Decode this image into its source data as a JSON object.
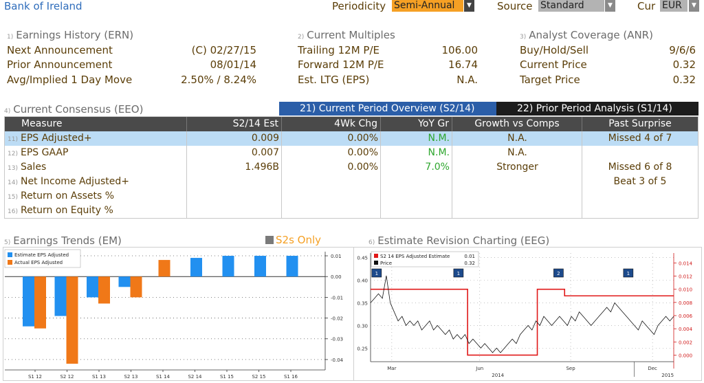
{
  "header": {
    "title": "Bank of Ireland",
    "periodicity_label": "Periodicity",
    "periodicity_value": "Semi-Annual",
    "source_label": "Source",
    "source_value": "Standard",
    "cur_label": "Cur",
    "cur_value": "EUR"
  },
  "earnings_history": {
    "num": "1)",
    "title": "Earnings History (ERN)",
    "rows": [
      {
        "label": "Next Announcement",
        "value": "(C)  02/27/15"
      },
      {
        "label": "Prior Announcement",
        "value": "08/01/14"
      },
      {
        "label": "Avg/Implied 1 Day Move",
        "value": "2.50% / 8.24%"
      }
    ]
  },
  "current_multiples": {
    "num": "2)",
    "title": "Current Multiples",
    "rows": [
      {
        "label": "Trailing 12M P/E",
        "value": "106.00"
      },
      {
        "label": "Forward 12M P/E",
        "value": "16.74"
      },
      {
        "label": "Est. LTG (EPS)",
        "value": "N.A."
      }
    ]
  },
  "analyst_coverage": {
    "num": "3)",
    "title": "Analyst Coverage (ANR)",
    "rows": [
      {
        "label": "Buy/Hold/Sell",
        "value": "9/6/6"
      },
      {
        "label": "Current Price",
        "value": "0.32"
      },
      {
        "label": "Target Price",
        "value": "0.32"
      }
    ]
  },
  "consensus": {
    "num": "4)",
    "title": "Current Consensus (EEO)",
    "tab_current": "21) Current Period Overview (S2/14)",
    "tab_prior": "22) Prior Period Analysis (S1/14)",
    "columns": [
      "Measure",
      "S2/14 Est",
      "4Wk Chg",
      "YoY Gr",
      "Growth vs Comps",
      "Past Surprise"
    ],
    "rows": [
      {
        "num": "11)",
        "measure": "EPS Adjusted+",
        "est": "0.009",
        "chg": "0.00%",
        "yoy": "N.M.",
        "comps": "N.A.",
        "surprise": "Missed 4 of 7"
      },
      {
        "num": "12)",
        "measure": "EPS GAAP",
        "est": "0.007",
        "chg": "0.00%",
        "yoy": "N.M.",
        "comps": "N.A.",
        "surprise": ""
      },
      {
        "num": "13)",
        "measure": "Sales",
        "est": "1.496B",
        "chg": "0.00%",
        "yoy": "7.0%",
        "comps": "Stronger",
        "surprise": "Missed 6 of 8"
      },
      {
        "num": "14)",
        "measure": "Net Income Adjusted+",
        "est": "",
        "chg": "",
        "yoy": "",
        "comps": "",
        "surprise": "Beat 3 of 5"
      },
      {
        "num": "15)",
        "measure": "Return on Assets %",
        "est": "",
        "chg": "",
        "yoy": "",
        "comps": "",
        "surprise": ""
      },
      {
        "num": "16)",
        "measure": "Return on Equity %",
        "est": "",
        "chg": "",
        "yoy": "",
        "comps": "",
        "surprise": ""
      }
    ]
  },
  "earnings_trends": {
    "num": "5)",
    "title": "Earnings Trends (EM)",
    "toggle_label": "S2s Only"
  },
  "estimate_revision": {
    "num": "6)",
    "title": "Estimate Revision Charting (EEG)"
  },
  "colors": {
    "estimate": "#2290f0",
    "actual": "#f07818",
    "est_line": "#e01818",
    "price_line": "#111111",
    "accent_orange": "#f5a024",
    "tab_blue": "#2b5ea8",
    "highlight_row": "#bcdcf5"
  },
  "chart_data": [
    {
      "type": "bar",
      "legend": [
        "Estimate EPS Adjusted",
        "Actual EPS Adjusted"
      ],
      "categories": [
        "S1 12",
        "S2 12",
        "S1 13",
        "S2 13",
        "S1 14",
        "S2 14",
        "S1 15",
        "S2 15",
        "S1 16"
      ],
      "series": [
        {
          "name": "Estimate EPS Adjusted",
          "values": [
            -0.024,
            -0.019,
            -0.01,
            -0.005,
            null,
            0.009,
            0.01,
            0.01,
            0.01
          ]
        },
        {
          "name": "Actual EPS Adjusted",
          "values": [
            -0.025,
            -0.042,
            -0.013,
            -0.01,
            0.008,
            null,
            null,
            null,
            null
          ]
        }
      ],
      "yticks": [
        "0.01",
        "0.00",
        "-0.01",
        "-0.02",
        "-0.03",
        "-0.04"
      ],
      "ylim": [
        -0.045,
        0.012
      ],
      "grid": true,
      "legend_position": "top-left"
    },
    {
      "type": "line",
      "legend": [
        {
          "name": "S2 14 EPS Adjusted Estimate",
          "value": "0.01"
        },
        {
          "name": "Price",
          "value": "0.32"
        }
      ],
      "x_ticks": [
        "Mar",
        "Jun",
        "Sep",
        "Dec"
      ],
      "x_year_labels": [
        "2014",
        "2015"
      ],
      "y_left_ticks": [
        "0.45",
        "0.40",
        "0.35",
        "0.30",
        "0.25"
      ],
      "y_left_lim": [
        0.22,
        0.46
      ],
      "y_right_ticks": [
        "0.014",
        "0.012",
        "0.010",
        "0.008",
        "0.006",
        "0.004",
        "0.002",
        "0.000"
      ],
      "y_right_lim": [
        -0.001,
        0.0155
      ],
      "estimate_series": {
        "name": "S2 14 EPS Adjusted Estimate",
        "steps": [
          {
            "t": 0.0,
            "v": 0.01
          },
          {
            "t": 0.32,
            "v": 0.01
          },
          {
            "t": 0.32,
            "v": 0.0
          },
          {
            "t": 0.55,
            "v": 0.0
          },
          {
            "t": 0.55,
            "v": 0.01
          },
          {
            "t": 0.64,
            "v": 0.01
          },
          {
            "t": 0.64,
            "v": 0.009
          },
          {
            "t": 1.0,
            "v": 0.009
          }
        ]
      },
      "price_series": {
        "name": "Price",
        "values": [
          0.35,
          0.36,
          0.37,
          0.36,
          0.41,
          0.35,
          0.33,
          0.31,
          0.32,
          0.3,
          0.31,
          0.3,
          0.31,
          0.29,
          0.3,
          0.31,
          0.29,
          0.3,
          0.29,
          0.28,
          0.29,
          0.27,
          0.28,
          0.27,
          0.28,
          0.26,
          0.27,
          0.26,
          0.25,
          0.26,
          0.25,
          0.24,
          0.25,
          0.24,
          0.25,
          0.26,
          0.27,
          0.26,
          0.28,
          0.29,
          0.3,
          0.29,
          0.31,
          0.3,
          0.32,
          0.31,
          0.3,
          0.31,
          0.32,
          0.31,
          0.3,
          0.32,
          0.31,
          0.33,
          0.32,
          0.31,
          0.3,
          0.31,
          0.32,
          0.33,
          0.34,
          0.33,
          0.35,
          0.34,
          0.33,
          0.32,
          0.31,
          0.3,
          0.29,
          0.31,
          0.3,
          0.29,
          0.28,
          0.3,
          0.31,
          0.32,
          0.31,
          0.32
        ]
      },
      "markers": [
        "1",
        "1",
        "2",
        "1"
      ]
    }
  ]
}
